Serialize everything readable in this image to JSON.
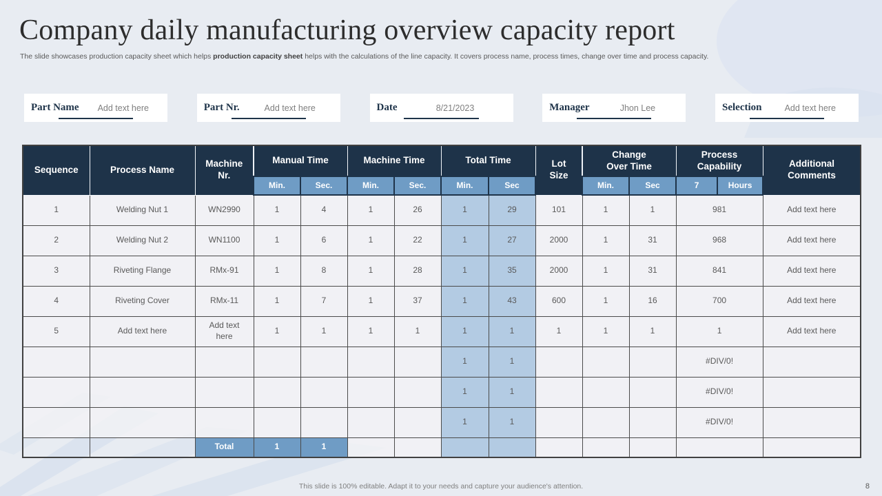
{
  "slide": {
    "title": "Company daily manufacturing overview capacity report",
    "subtitle_pre": "The slide showcases production capacity sheet which helps ",
    "subtitle_bold": "production capacity sheet",
    "subtitle_post": " helps with the calculations of the line capacity. It covers  process name, process times, change over time and process capacity.",
    "footer": "This slide is 100% editable. Adapt it to your needs and capture your audience's attention.",
    "page_number": "8"
  },
  "fields": [
    {
      "label": "Part Name",
      "value": "Add text here"
    },
    {
      "label": "Part Nr.",
      "value": "Add text here"
    },
    {
      "label": "Date",
      "value": "8/21/2023"
    },
    {
      "label": "Manager",
      "value": "Jhon Lee"
    },
    {
      "label": "Selection",
      "value": "Add text here"
    }
  ],
  "table": {
    "header": {
      "row1": [
        {
          "label": "Sequence"
        },
        {
          "label": "Process Name"
        },
        {
          "label": "Machine\nNr."
        },
        {
          "label": "Manual Time"
        },
        {
          "label": "Machine Time"
        },
        {
          "label": "Total Time"
        },
        {
          "label": "Lot\nSize"
        },
        {
          "label": "Change\nOver Time"
        },
        {
          "label": "Process\nCapability"
        },
        {
          "label": "Additional\nComments"
        }
      ],
      "row2": [
        "Min.",
        "Sec.",
        "Min.",
        "Sec.",
        "Min.",
        "Sec",
        "Min.",
        "Sec",
        "7",
        "Hours"
      ]
    },
    "rows": [
      {
        "type": "data",
        "cells": [
          "1",
          "Welding Nut 1",
          "WN2990",
          "1",
          "4",
          "1",
          "26",
          "1",
          "29",
          "101",
          "1",
          "1",
          "981",
          "Add text here"
        ]
      },
      {
        "type": "data",
        "cells": [
          "2",
          "Welding Nut 2",
          "WN1100",
          "1",
          "6",
          "1",
          "22",
          "1",
          "27",
          "2000",
          "1",
          "31",
          "968",
          "Add text here"
        ]
      },
      {
        "type": "data",
        "cells": [
          "3",
          "Riveting Flange",
          "RMx-91",
          "1",
          "8",
          "1",
          "28",
          "1",
          "35",
          "2000",
          "1",
          "31",
          "841",
          "Add text here"
        ]
      },
      {
        "type": "data",
        "cells": [
          "4",
          "Riveting Cover",
          "RMx-11",
          "1",
          "7",
          "1",
          "37",
          "1",
          "43",
          "600",
          "1",
          "16",
          "700",
          "Add text here"
        ]
      },
      {
        "type": "data",
        "cells": [
          "5",
          "Add text here",
          "Add text\nhere",
          "1",
          "1",
          "1",
          "1",
          "1",
          "1",
          "1",
          "1",
          "1",
          "1",
          "Add text here"
        ]
      },
      {
        "type": "empty",
        "cells": [
          "",
          "",
          "",
          "",
          "",
          "",
          "",
          "1",
          "1",
          "",
          "",
          "",
          "#DIV/0!",
          ""
        ]
      },
      {
        "type": "empty",
        "cells": [
          "",
          "",
          "",
          "",
          "",
          "",
          "",
          "1",
          "1",
          "",
          "",
          "",
          "#DIV/0!",
          ""
        ]
      },
      {
        "type": "empty",
        "cells": [
          "",
          "",
          "",
          "",
          "",
          "",
          "",
          "1",
          "1",
          "",
          "",
          "",
          "#DIV/0!",
          ""
        ]
      },
      {
        "type": "total",
        "cells": [
          "",
          "",
          "Total",
          "1",
          "1",
          "",
          "",
          "",
          "",
          "",
          "",
          "",
          "",
          ""
        ]
      }
    ]
  },
  "colors": {
    "header_navy": "#1e3349",
    "medium_blue": "#6f9cc5",
    "light_blue_cell": "#b3cbe3",
    "cell_background": "#f2f3f5",
    "slide_background": "#e8ecf2",
    "accent_underline": "#1e3349",
    "muted_text": "#7f7f7f"
  }
}
